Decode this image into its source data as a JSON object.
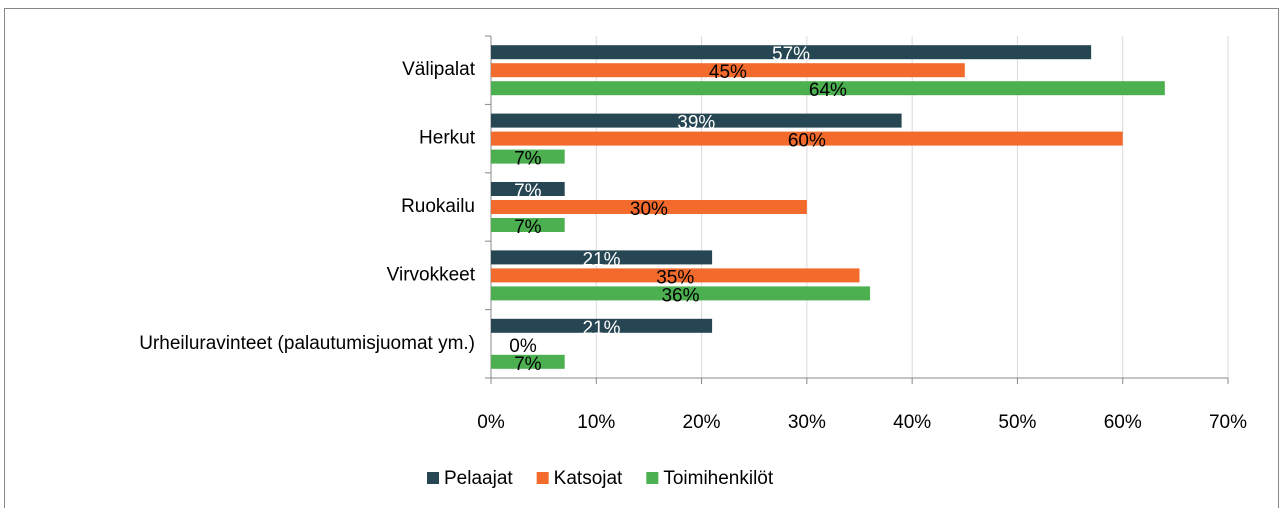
{
  "chart_data": {
    "type": "bar",
    "orientation": "horizontal",
    "categories": [
      "Välipalat",
      "Herkut",
      "Ruokailu",
      "Virvokkeet",
      "Urheiluravinteet (palautumisjuomat ym.)"
    ],
    "series": [
      {
        "name": "Pelaajat",
        "color": "#264653",
        "values": [
          57,
          39,
          7,
          21,
          21
        ],
        "value_labels": [
          "57%",
          "39%",
          "7%",
          "21%",
          "21%"
        ]
      },
      {
        "name": "Katsojat",
        "color": "#f36b2c",
        "values": [
          45,
          60,
          30,
          35,
          0
        ],
        "value_labels": [
          "45%",
          "60%",
          "30%",
          "35%",
          "0%"
        ]
      },
      {
        "name": "Toimihenkilöt",
        "color": "#4caf50",
        "values": [
          64,
          7,
          7,
          36,
          7
        ],
        "value_labels": [
          "64%",
          "7%",
          "7%",
          "36%",
          "7%"
        ]
      }
    ],
    "xlim": [
      0,
      70
    ],
    "xticks": [
      {
        "value": 0,
        "label": "0%"
      },
      {
        "value": 10,
        "label": "10%"
      },
      {
        "value": 20,
        "label": "20%"
      },
      {
        "value": 30,
        "label": "30%"
      },
      {
        "value": 40,
        "label": "40%"
      },
      {
        "value": 50,
        "label": "50%"
      },
      {
        "value": 60,
        "label": "60%"
      },
      {
        "value": 70,
        "label": "70%"
      }
    ],
    "grid": true,
    "legend": "bottom"
  }
}
